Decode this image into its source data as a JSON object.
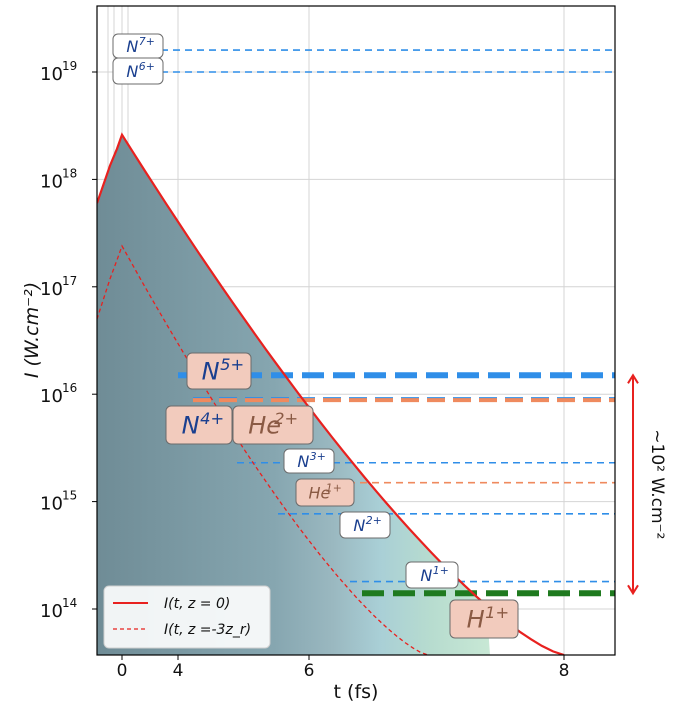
{
  "chart_data": {
    "type": "line",
    "xlabel": "t (fs)",
    "ylabel": "I (W.cm⁻²)",
    "x_scale": "nonlinear",
    "y_scale": "log",
    "ylim": [
      40000000000000.0,
      4e+19
    ],
    "xlim": [
      -0.1,
      9.4
    ],
    "x_ticks": [
      {
        "value": 0,
        "label": "0"
      },
      {
        "value": 4,
        "label": "4"
      },
      {
        "value": 6,
        "label": "6"
      },
      {
        "value": 8,
        "label": "8"
      }
    ],
    "y_ticks": [
      {
        "exp": "14",
        "value": 100000000000000.0
      },
      {
        "exp": "15",
        "value": 1000000000000000.0
      },
      {
        "exp": "16",
        "value": 1e+16
      },
      {
        "exp": "17",
        "value": 1e+17
      },
      {
        "exp": "18",
        "value": 1e+18
      },
      {
        "exp": "19",
        "value": 1e+19
      }
    ],
    "y_tick_base": "10",
    "grid": true,
    "series": [
      {
        "name": "I(t, z = 0)",
        "color": "#e8211f",
        "style": "solid",
        "peak": 2.6e+18,
        "peak_t": 0
      },
      {
        "name": "I(t, z =-3z_r)",
        "color": "#e8211f",
        "style": "dashed",
        "peak": 2.4e+17,
        "peak_t": 0
      }
    ],
    "thresholds": [
      {
        "ion": "N",
        "charge": "7+",
        "value": 1.6e+19,
        "color": "#2f8ee8",
        "weight": "thin"
      },
      {
        "ion": "N",
        "charge": "6+",
        "value": 1e+19,
        "color": "#2f8ee8",
        "weight": "thin"
      },
      {
        "ion": "N",
        "charge": "5+",
        "value": 1.5e+16,
        "color": "#2f8ee8",
        "weight": "thick"
      },
      {
        "ion": "N",
        "charge": "4+",
        "value": 9000000000000000.0,
        "color": "#2f8ee8",
        "weight": "medium"
      },
      {
        "ion": "He",
        "charge": "2+",
        "value": 8800000000000000.0,
        "color": "#ef8a5e",
        "weight": "medium"
      },
      {
        "ion": "N",
        "charge": "3+",
        "value": 2300000000000000.0,
        "color": "#2f8ee8",
        "weight": "thin"
      },
      {
        "ion": "He",
        "charge": "1+",
        "value": 1500000000000000.0,
        "color": "#ef8a5e",
        "weight": "thin"
      },
      {
        "ion": "N",
        "charge": "2+",
        "value": 770000000000000.0,
        "color": "#2f8ee8",
        "weight": "thin"
      },
      {
        "ion": "N",
        "charge": "1+",
        "value": 180000000000000.0,
        "color": "#2f8ee8",
        "weight": "thin"
      },
      {
        "ion": "H",
        "charge": "1+",
        "value": 140000000000000.0,
        "color": "#1f7a1f",
        "weight": "thick"
      }
    ],
    "range_annotation": {
      "text": "~10² W.cm⁻²",
      "color": "#e8211f"
    },
    "legend": "bottom-left"
  }
}
